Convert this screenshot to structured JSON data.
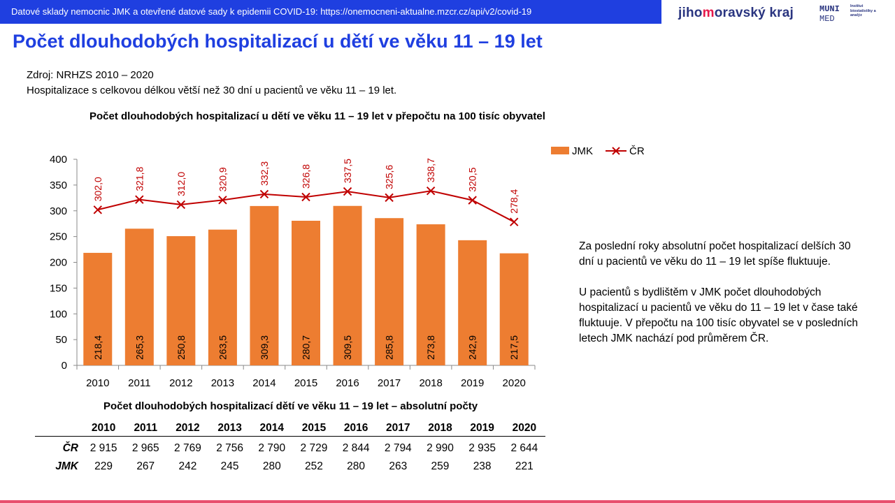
{
  "header": {
    "source_text": "Datové sklady nemocnic JMK a otevřené datové sady k epidemii COVID-19: https://onemocneni-aktualne.mzcr.cz/api/v2/covid-19",
    "logo_jmk_part1": "jiho",
    "logo_jmk_part2": "m",
    "logo_jmk_part3": "oravský kraj",
    "logo_muni_line1": "MUNI",
    "logo_muni_line2": "MED",
    "logo_muni_sub": "Institut biostatistiky a analýz"
  },
  "page": {
    "title": "Počet dlouhodobých hospitalizací u dětí ve věku 11 – 19 let",
    "source_line1": "Zdroj: NRHZS 2010 – 2020",
    "source_line2": "Hospitalizace s celkovou délkou větší než 30 dní u pacientů ve věku 11 – 19 let.",
    "side_paragraph1": "Za poslední roky absolutní počet hospitalizací delších 30 dní u pacientů ve věku do 11 – 19 let spíše fluktuuje.",
    "side_paragraph2": "U pacientů s bydlištěm v JMK počet dlouhodobých hospitalizací u pacientů ve věku do 11 – 19 let v čase také fluktuuje. V přepočtu na 100 tisíc obyvatel se v posledních letech JMK nachází pod průměrem ČR."
  },
  "chart_data": {
    "type": "bar",
    "title": "Počet dlouhodobých hospitalizací u dětí ve věku 11 – 19 let v přepočtu na 100 tisíc obyvatel",
    "categories": [
      "2010",
      "2011",
      "2012",
      "2013",
      "2014",
      "2015",
      "2016",
      "2017",
      "2018",
      "2019",
      "2020"
    ],
    "series": [
      {
        "name": "JMK",
        "type": "bar",
        "color": "#ed7d31",
        "values": [
          218.4,
          265.3,
          250.8,
          263.5,
          309.3,
          280.7,
          309.5,
          285.8,
          273.8,
          242.9,
          217.5
        ],
        "labels": [
          "218,4",
          "265,3",
          "250,8",
          "263,5",
          "309,3",
          "280,7",
          "309,5",
          "285,8",
          "273,8",
          "242,9",
          "217,5"
        ]
      },
      {
        "name": "ČR",
        "type": "line",
        "color": "#c00000",
        "values": [
          302.0,
          321.8,
          312.0,
          320.9,
          332.3,
          326.8,
          337.5,
          325.6,
          338.7,
          320.5,
          278.4
        ],
        "labels": [
          "302,0",
          "321,8",
          "312,0",
          "320,9",
          "332,3",
          "326,8",
          "337,5",
          "325,6",
          "338,7",
          "320,5",
          "278,4"
        ]
      }
    ],
    "ylim": [
      0,
      400
    ],
    "yticks": [
      0,
      50,
      100,
      150,
      200,
      250,
      300,
      350,
      400
    ],
    "legend_position": "top-right",
    "grid": false
  },
  "table": {
    "title": "Počet dlouhodobých hospitalizací dětí ve věku 11 – 19 let – absolutní počty",
    "years": [
      "2010",
      "2011",
      "2012",
      "2013",
      "2014",
      "2015",
      "2016",
      "2017",
      "2018",
      "2019",
      "2020"
    ],
    "rows": [
      {
        "label": "ČR",
        "values": [
          "2 915",
          "2 965",
          "2 769",
          "2 756",
          "2 790",
          "2 729",
          "2 844",
          "2 794",
          "2 990",
          "2 935",
          "2 644"
        ]
      },
      {
        "label": "JMK",
        "values": [
          "229",
          "267",
          "242",
          "245",
          "280",
          "252",
          "280",
          "263",
          "259",
          "238",
          "221"
        ]
      }
    ]
  }
}
